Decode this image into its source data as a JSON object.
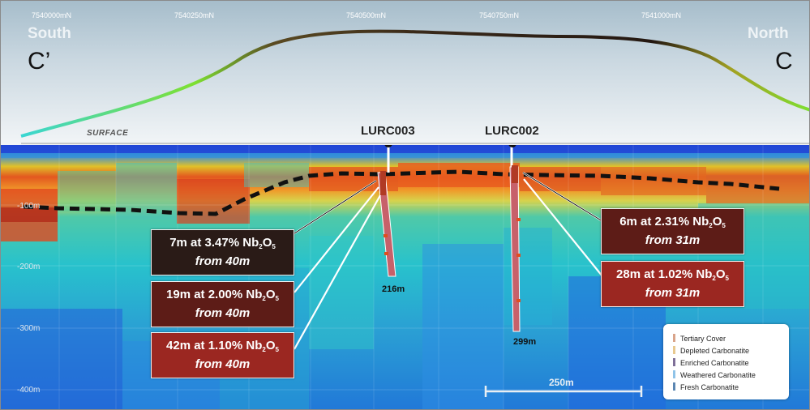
{
  "northings": [
    "7540000mN",
    "7540250mN",
    "7540500mN",
    "7540750mN",
    "7541000mN"
  ],
  "compass": {
    "south": "South",
    "north": "North"
  },
  "section": {
    "left": "C’",
    "right": "C"
  },
  "surface_label": "SURFACE",
  "depth_ticks": [
    "-100m",
    "-200m",
    "-300m",
    "-400m"
  ],
  "holes": {
    "lurc003": {
      "name": "LURC003",
      "end_depth": "216m"
    },
    "lurc002": {
      "name": "LURC002",
      "end_depth": "299m"
    }
  },
  "intercepts": [
    {
      "grade": "7m at 3.47% Nb",
      "sub2": "2",
      "o": "O",
      "sub5": "5",
      "from": "from 40m",
      "color": "#2a1b17"
    },
    {
      "grade": "19m at 2.00% Nb",
      "sub2": "2",
      "o": "O",
      "sub5": "5",
      "from": "from 40m",
      "color": "#5d1c17"
    },
    {
      "grade": "42m at 1.10% Nb",
      "sub2": "2",
      "o": "O",
      "sub5": "5",
      "from": "from 40m",
      "color": "#9b2721"
    },
    {
      "grade": "6m at 2.31% Nb",
      "sub2": "2",
      "o": "O",
      "sub5": "5",
      "from": "from 31m",
      "color": "#5d1c17"
    },
    {
      "grade": "28m at 1.02% Nb",
      "sub2": "2",
      "o": "O",
      "sub5": "5",
      "from": "from 31m",
      "color": "#9b2721"
    }
  ],
  "legend": [
    {
      "label": "Tertiary Cover",
      "color": "#d9a48a"
    },
    {
      "label": "Depleted Carbonatite",
      "color": "#e8c98f"
    },
    {
      "label": "Enriched Carbonatite",
      "color": "#7f6f98"
    },
    {
      "label": "Weathered Carbonatite",
      "color": "#8fc3e8"
    },
    {
      "label": "Fresh Carbonatite",
      "color": "#5b86b2"
    }
  ],
  "scale_bar": "250m",
  "colors": {
    "sky_top": "#a6bdcb",
    "deep_blue": "#1f49d8",
    "cyan": "#24c3cf",
    "hot_red": "#d8341f"
  }
}
